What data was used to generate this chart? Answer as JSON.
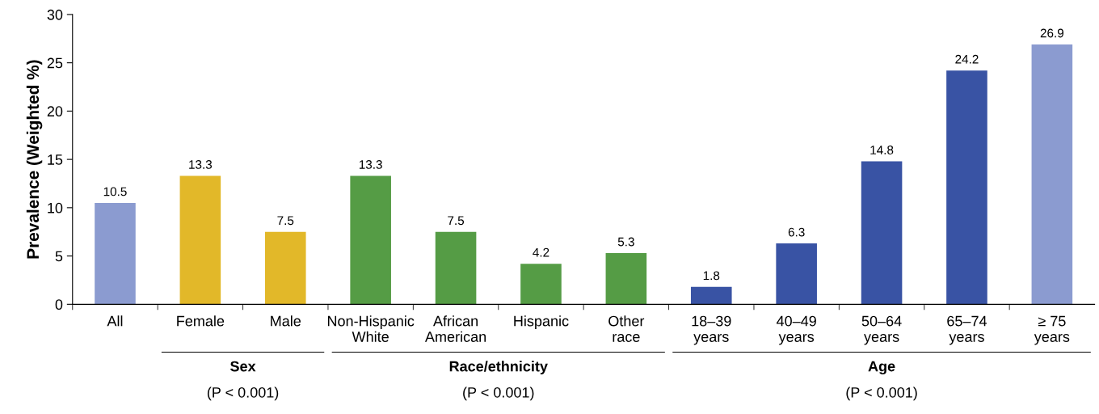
{
  "chart_data": {
    "type": "bar",
    "ylabel": "Prevalence (Weighted %)",
    "categories": [
      "All",
      "Female",
      "Male",
      "Non-Hispanic\nWhite",
      "African\nAmerican",
      "Hispanic",
      "Other\nrace",
      "18–39\nyears",
      "40–49\nyears",
      "50–64\nyears",
      "65–74\nyears",
      "≥ 75\nyears"
    ],
    "values": [
      10.5,
      13.3,
      7.5,
      13.3,
      7.5,
      4.2,
      5.3,
      1.8,
      6.3,
      14.8,
      24.2,
      26.9
    ],
    "colors": [
      "#8b9bd0",
      "#e2b829",
      "#e2b829",
      "#559c45",
      "#559c45",
      "#559c45",
      "#559c45",
      "#3953a4",
      "#3953a4",
      "#3953a4",
      "#3953a4",
      "#8b9bd0"
    ],
    "ylim": [
      0,
      30
    ],
    "yticks": [
      0,
      5,
      10,
      15,
      20,
      25,
      30
    ],
    "data_labels": true,
    "grid": false,
    "legend": false,
    "annotations": [
      "Sex\n(P < 0.001)",
      "Race/ethnicity\n(P < 0.001)",
      "Age\n(P < 0.001)"
    ]
  }
}
